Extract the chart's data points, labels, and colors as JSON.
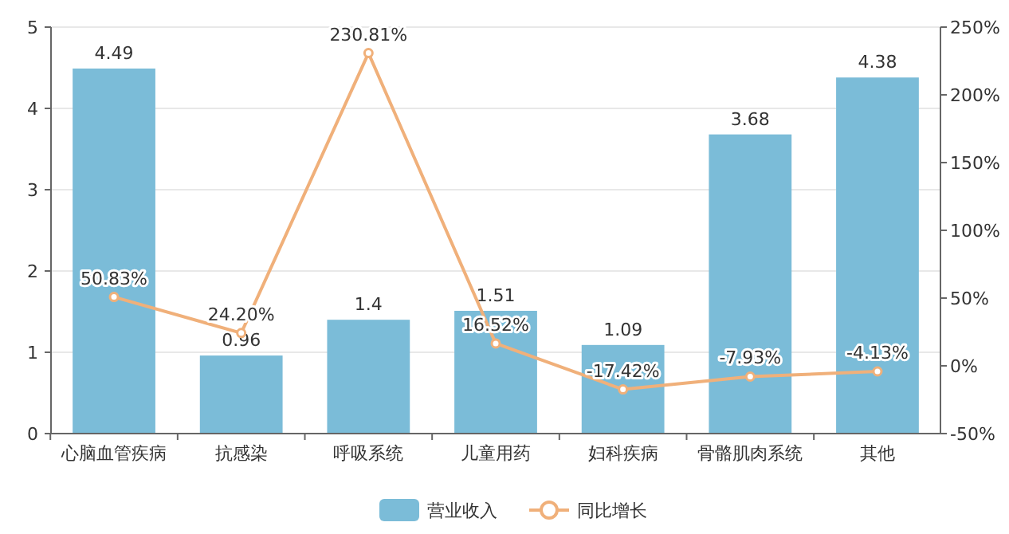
{
  "chart_data": {
    "type": "bar",
    "categories": [
      "心脑血管疾病",
      "抗感染",
      "呼吸系统",
      "儿童用药",
      "妇科疾病",
      "骨骼肌肉系统",
      "其他"
    ],
    "series": [
      {
        "name": "营业收入",
        "color": "#7bbcd8",
        "values": [
          4.49,
          0.96,
          1.4,
          1.51,
          1.09,
          3.68,
          4.38
        ]
      },
      {
        "name": "同比增长",
        "type": "line",
        "axis": "y2",
        "color": "#f0b07a",
        "marker": "circle",
        "values": [
          50.83,
          24.2,
          230.81,
          16.52,
          -17.42,
          -7.93,
          -4.13
        ],
        "value_labels": [
          "50.83%",
          "24.20%",
          "230.81%",
          "16.52%",
          "-17.42%",
          "-7.93%",
          "-4.13%"
        ]
      }
    ],
    "data_labels": true,
    "ylim": [
      0,
      5
    ],
    "yticks": [
      0,
      1,
      2,
      3,
      4,
      5
    ],
    "y2lim": [
      -50,
      250
    ],
    "y2ticks": [
      {
        "value": -50,
        "label": "-50%"
      },
      {
        "value": 0,
        "label": "0%"
      },
      {
        "value": 50,
        "label": "50%"
      },
      {
        "value": 100,
        "label": "100%"
      },
      {
        "value": 150,
        "label": "150%"
      },
      {
        "value": 200,
        "label": "200%"
      },
      {
        "value": 250,
        "label": "250%"
      }
    ],
    "grid": "y",
    "legend": "bottom"
  }
}
